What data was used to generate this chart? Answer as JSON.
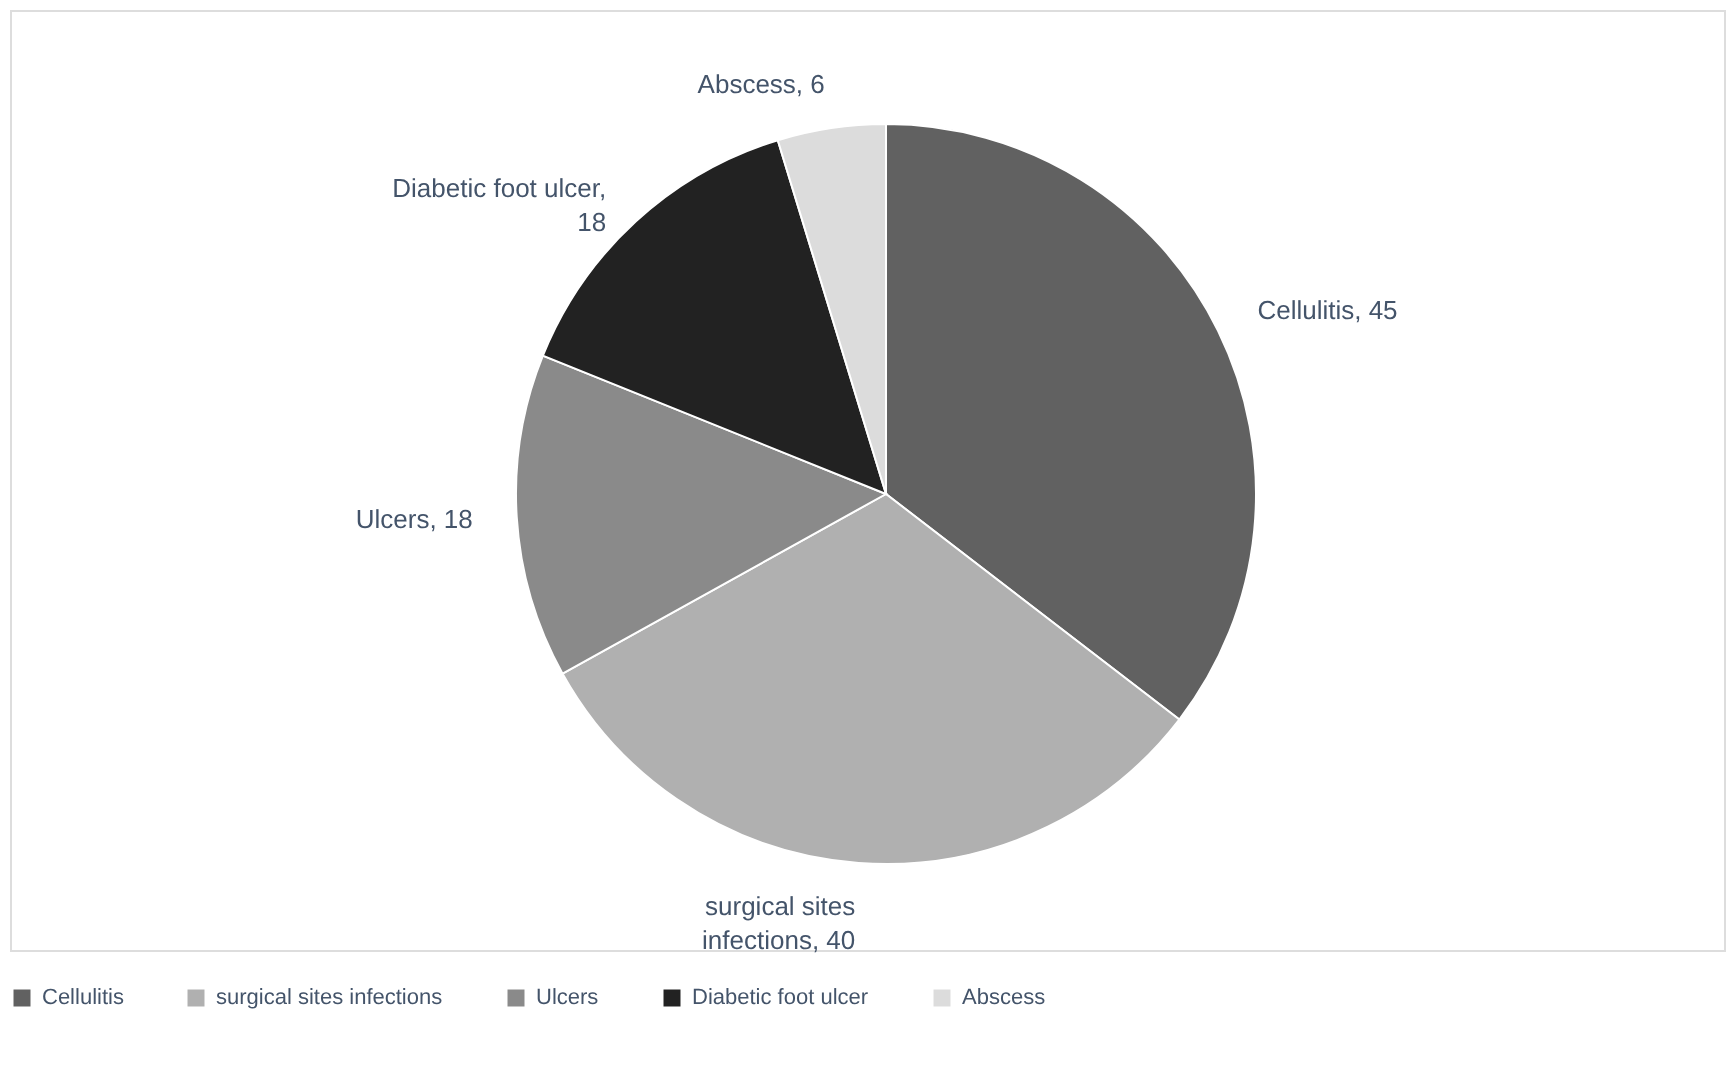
{
  "chart_data": {
    "type": "pie",
    "categories": [
      "Cellulitis",
      "surgical sites infections",
      "Ulcers",
      "Diabetic foot ulcer",
      "Abscess"
    ],
    "values": [
      45,
      40,
      18,
      18,
      6
    ],
    "colors": [
      "#616161",
      "#b0b0b0",
      "#8a8a8a",
      "#222222",
      "#dcdcdc"
    ],
    "value_labels": [
      "Cellulitis, 45",
      "surgical sites infections, 40",
      "Ulcers, 18",
      "Diabetic foot ulcer, 18",
      "Abscess, 6"
    ],
    "legend": "bottom"
  }
}
